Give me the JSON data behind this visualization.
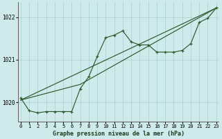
{
  "title": "Graphe pression niveau de la mer (hPa)",
  "bg_color": "#ceeaea",
  "line_color": "#2d5a2d",
  "xlim": [
    -0.3,
    23.3
  ],
  "ylim": [
    1019.55,
    1022.35
  ],
  "yticks": [
    1020,
    1021,
    1022
  ],
  "xticks": [
    0,
    1,
    2,
    3,
    4,
    5,
    6,
    7,
    8,
    9,
    10,
    11,
    12,
    13,
    14,
    15,
    16,
    17,
    18,
    19,
    20,
    21,
    22,
    23
  ],
  "actual_x": [
    0,
    1,
    2,
    3,
    4,
    5,
    6,
    7,
    8,
    9,
    10,
    11,
    12,
    13,
    14,
    15,
    16,
    17,
    18,
    19,
    20,
    21,
    22,
    23
  ],
  "actual_y": [
    1020.1,
    1019.8,
    1019.75,
    1019.78,
    1019.78,
    1019.78,
    1019.78,
    1020.32,
    1020.6,
    1021.08,
    1021.52,
    1021.58,
    1021.68,
    1021.42,
    1021.35,
    1021.35,
    1021.18,
    1021.18,
    1021.18,
    1021.22,
    1021.38,
    1021.88,
    1021.98,
    1022.22
  ],
  "trend1_x": [
    0,
    23
  ],
  "trend1_y": [
    1020.05,
    1022.22
  ],
  "trend2_x": [
    0,
    7,
    23
  ],
  "trend2_y": [
    1020.05,
    1020.42,
    1022.22
  ]
}
